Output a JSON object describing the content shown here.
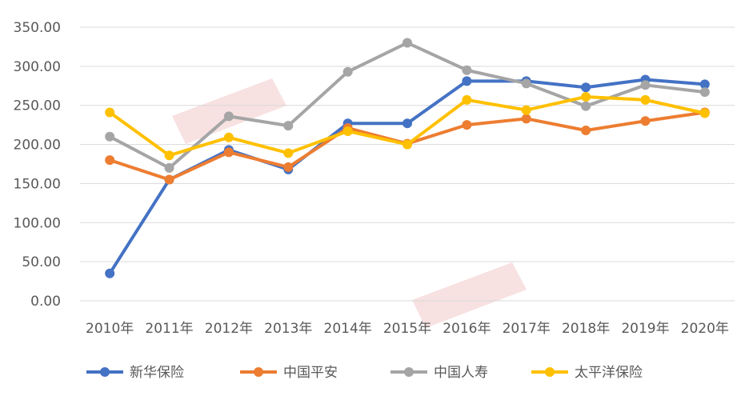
{
  "chart_data": {
    "type": "line",
    "title": "",
    "xlabel": "",
    "ylabel": "",
    "categories": [
      "2010年",
      "2011年",
      "2012年",
      "2013年",
      "2014年",
      "2015年",
      "2016年",
      "2017年",
      "2018年",
      "2019年",
      "2020年"
    ],
    "y_tick_labels": [
      "350.00",
      "300.00",
      "250.00",
      "200.00",
      "150.00",
      "100.00",
      "50.00",
      "0.00"
    ],
    "ylim": [
      0,
      350
    ],
    "grid": true,
    "legend_position": "bottom",
    "series": [
      {
        "name": "新华保险",
        "color": "#4472C4",
        "values": [
          35,
          155,
          193,
          168,
          227,
          227,
          281,
          281,
          273,
          283,
          277
        ]
      },
      {
        "name": "中国平安",
        "color": "#ED7D31",
        "values": [
          180,
          155,
          190,
          171,
          221,
          201,
          225,
          233,
          218,
          230,
          241
        ]
      },
      {
        "name": "中国人寿",
        "color": "#A5A5A5",
        "values": [
          210,
          170,
          236,
          224,
          293,
          330,
          295,
          278,
          249,
          276,
          267
        ]
      },
      {
        "name": "太平洋保险",
        "color": "#FFC000",
        "values": [
          241,
          186,
          209,
          189,
          217,
          200,
          257,
          244,
          261,
          257,
          240
        ]
      }
    ]
  }
}
